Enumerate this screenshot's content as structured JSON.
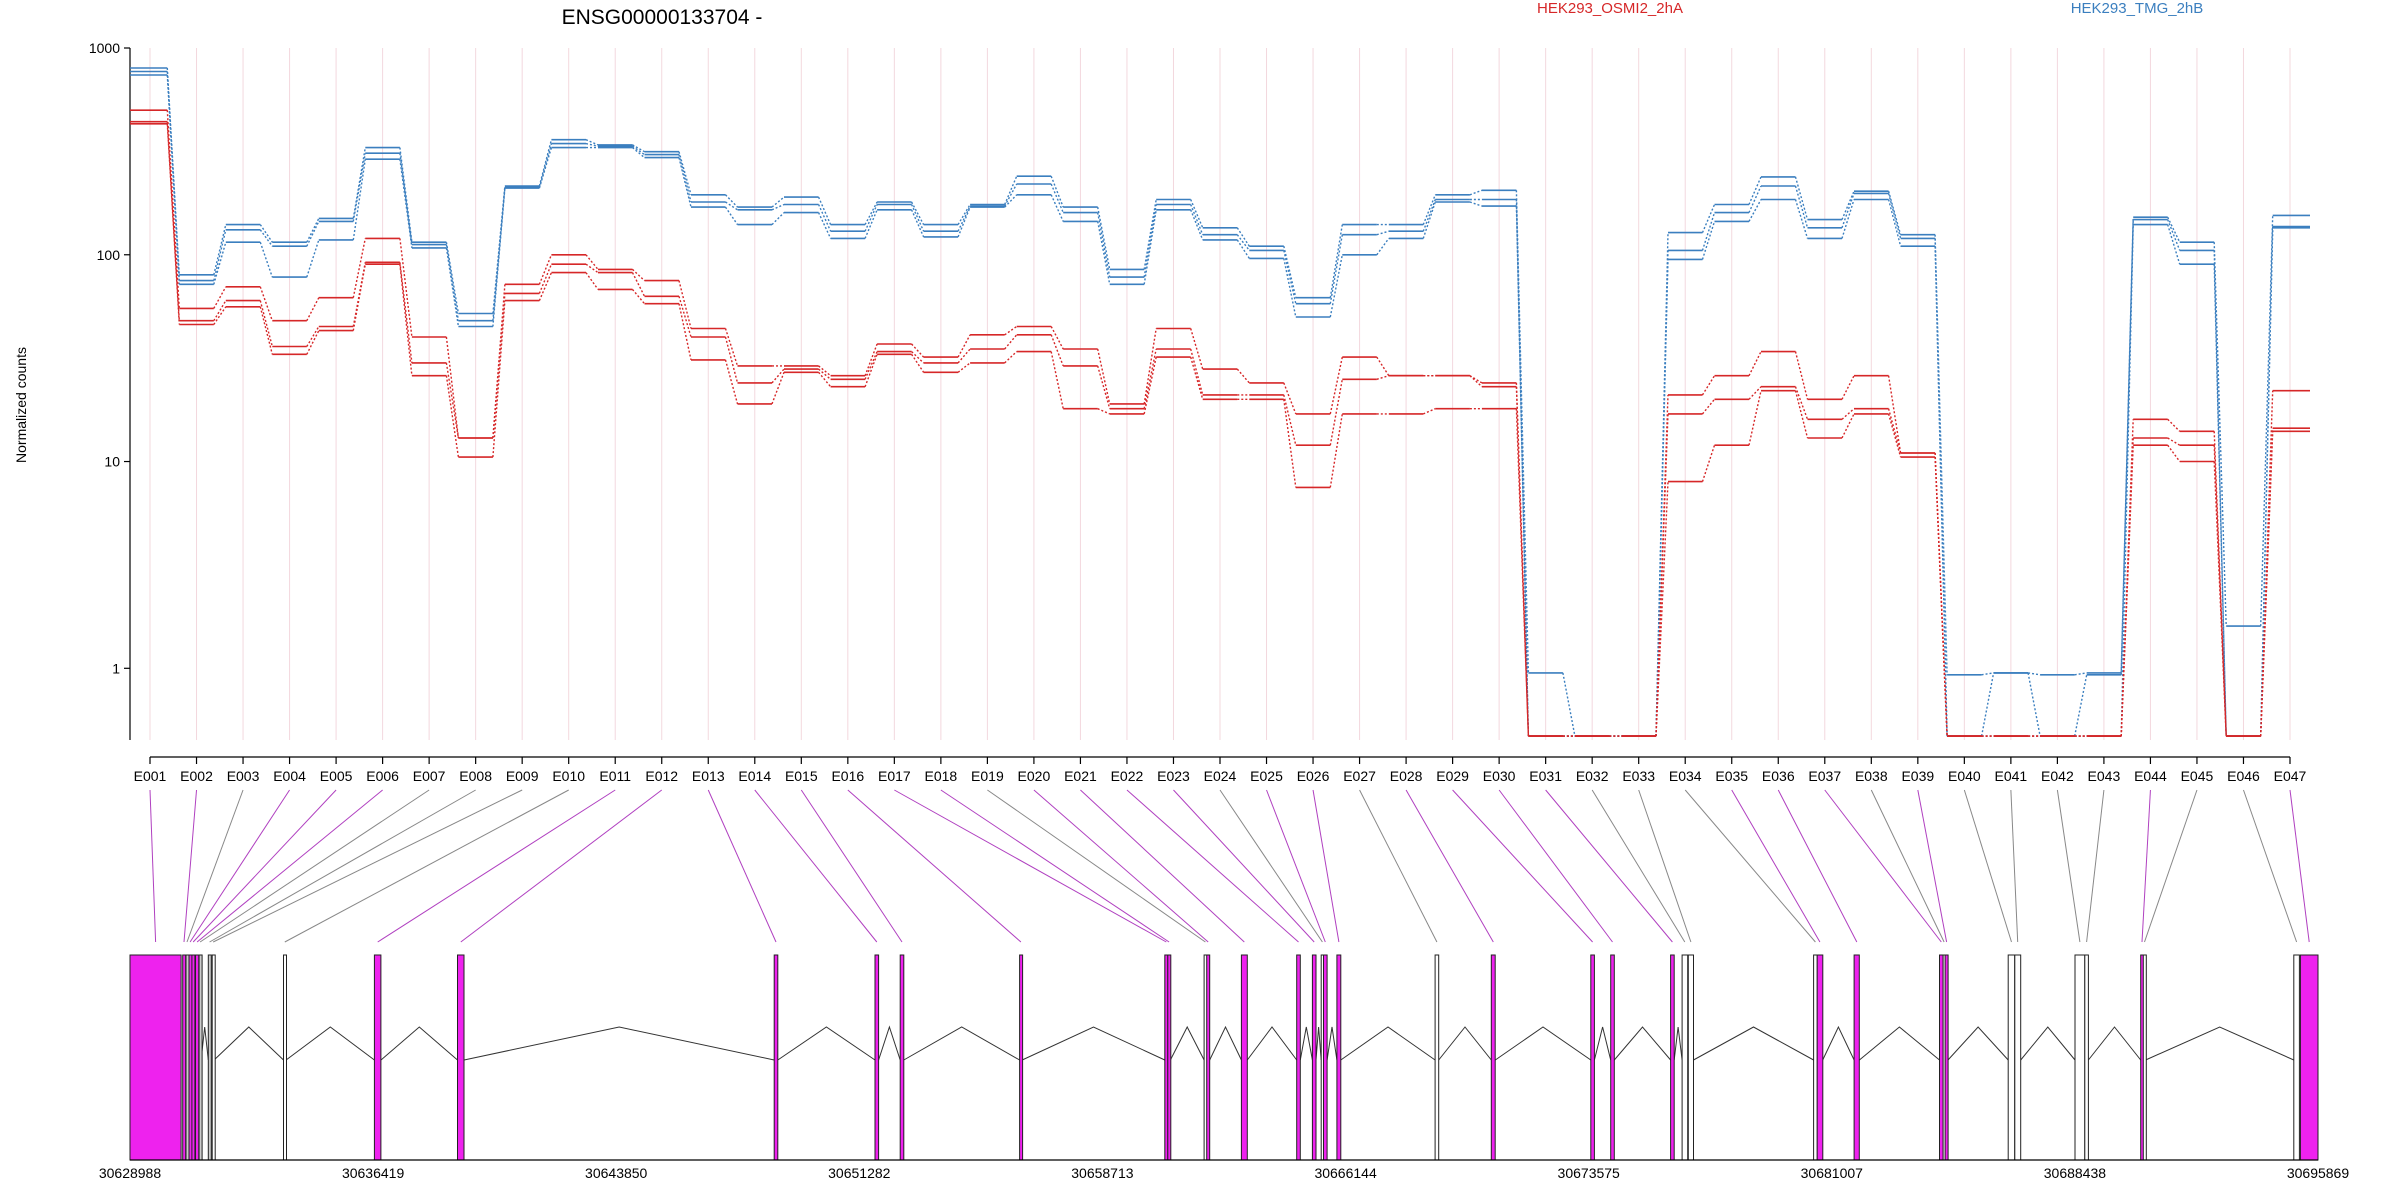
{
  "chart_data": {
    "type": "line",
    "title": "ENSG00000133704 -",
    "ylabel": "Normalized counts",
    "yscale": "log",
    "ylim": [
      0.45,
      1000
    ],
    "yticks": [
      {
        "value": 1,
        "label": "1"
      },
      {
        "value": 10,
        "label": "10"
      },
      {
        "value": 100,
        "label": "100"
      },
      {
        "value": 1000,
        "label": "1000"
      }
    ],
    "legend": [
      {
        "name": "HEK293_OSMI2_2hA",
        "color": "#d62728",
        "position": "top-center"
      },
      {
        "name": "HEK293_TMG_2hB",
        "color": "#3b7fbf",
        "position": "top-right"
      }
    ],
    "categories": [
      "E001",
      "E002",
      "E003",
      "E004",
      "E005",
      "E006",
      "E007",
      "E008",
      "E009",
      "E010",
      "E011",
      "E012",
      "E013",
      "E014",
      "E015",
      "E016",
      "E017",
      "E018",
      "E019",
      "E020",
      "E021",
      "E022",
      "E023",
      "E024",
      "E025",
      "E026",
      "E027",
      "E028",
      "E029",
      "E030",
      "E031",
      "E032",
      "E033",
      "E034",
      "E035",
      "E036",
      "E037",
      "E038",
      "E039",
      "E040",
      "E041",
      "E042",
      "E043",
      "E044",
      "E045",
      "E046",
      "E047"
    ],
    "series": [
      {
        "group": "HEK293_TMG_2hB",
        "color": "#3b7fbf",
        "values": [
          800,
          80,
          140,
          115,
          150,
          330,
          115,
          52,
          215,
          360,
          340,
          315,
          195,
          170,
          190,
          140,
          180,
          140,
          175,
          240,
          170,
          85,
          185,
          135,
          110,
          62,
          140,
          140,
          195,
          205,
          0.95,
          0.47,
          0.47,
          128,
          175,
          238,
          148,
          203,
          125,
          0.93,
          0.95,
          0.93,
          0.95,
          152,
          115,
          1.6,
          155
        ]
      },
      {
        "group": "HEK293_TMG_2hB",
        "color": "#3b7fbf",
        "values": [
          770,
          75,
          132,
          110,
          145,
          310,
          112,
          48,
          212,
          345,
          335,
          305,
          180,
          165,
          175,
          130,
          175,
          130,
          172,
          220,
          160,
          78,
          175,
          125,
          105,
          58,
          125,
          130,
          185,
          185,
          0.47,
          0.47,
          0.47,
          105,
          160,
          215,
          135,
          198,
          120,
          0.47,
          0.95,
          0.47,
          0.93,
          148,
          105,
          0.47,
          137
        ]
      },
      {
        "group": "HEK293_TMG_2hB",
        "color": "#3b7fbf",
        "values": [
          740,
          72,
          115,
          78,
          118,
          290,
          108,
          45,
          210,
          330,
          330,
          295,
          170,
          140,
          160,
          120,
          165,
          122,
          170,
          195,
          145,
          72,
          165,
          118,
          96,
          50,
          100,
          120,
          180,
          172,
          0.47,
          0.47,
          0.47,
          95,
          145,
          185,
          120,
          185,
          110,
          0.47,
          0.47,
          0.47,
          0.47,
          140,
          90,
          0.47,
          135
        ]
      },
      {
        "group": "HEK293_OSMI2_2hA",
        "color": "#d62728",
        "values": [
          500,
          55,
          70,
          48,
          62,
          120,
          40,
          13,
          72,
          100,
          85,
          75,
          44,
          29,
          29,
          26,
          37,
          32,
          41,
          45,
          35,
          19,
          44,
          28,
          24,
          17,
          32,
          26,
          26,
          24,
          0.47,
          0.47,
          0.47,
          21,
          26,
          34,
          20,
          26,
          11,
          0.47,
          0.47,
          0.47,
          0.47,
          16,
          14,
          0.47,
          22
        ]
      },
      {
        "group": "HEK293_OSMI2_2hA",
        "color": "#d62728",
        "values": [
          440,
          48,
          60,
          36,
          45,
          92,
          30,
          13,
          65,
          90,
          82,
          63,
          40,
          24,
          28,
          25,
          34,
          30,
          35,
          41,
          29,
          18,
          35,
          21,
          21,
          12,
          25,
          26,
          26,
          23,
          0.47,
          0.47,
          0.47,
          17,
          20,
          23,
          16,
          18,
          11,
          0.47,
          0.47,
          0.47,
          0.47,
          13,
          12,
          0.47,
          14.5
        ]
      },
      {
        "group": "HEK293_OSMI2_2hA",
        "color": "#d62728",
        "values": [
          430,
          46,
          56,
          33,
          43,
          90,
          26,
          10.5,
          60,
          82,
          68,
          58,
          31,
          19,
          27,
          23,
          33,
          27,
          30,
          34,
          18,
          17,
          32,
          20,
          20,
          7.5,
          17,
          17,
          18,
          18,
          0.47,
          0.47,
          0.47,
          8,
          12,
          22,
          13,
          17,
          10.5,
          0.47,
          0.47,
          0.47,
          0.47,
          12,
          10,
          0.47,
          14
        ]
      }
    ],
    "gene_model": {
      "start": 30628988,
      "end": 30695869,
      "coordinate_labels": [
        "30628988",
        "30636419",
        "30643850",
        "30651282",
        "30658713",
        "30666144",
        "30673575",
        "30681007",
        "30688438",
        "30695869"
      ],
      "coordinate_values": [
        30628988,
        30636419,
        30643850,
        30651282,
        30658713,
        30666144,
        30673575,
        30681007,
        30688438,
        30695869
      ],
      "exons": [
        {
          "id": "E001",
          "start": 30628988,
          "end": 30630550,
          "highlight": true
        },
        {
          "id": "E002",
          "start": 30630600,
          "end": 30630680,
          "highlight": true
        },
        {
          "id": "E003",
          "start": 30630700,
          "end": 30630760,
          "highlight": false
        },
        {
          "id": "E004",
          "start": 30630790,
          "end": 30630860,
          "highlight": true
        },
        {
          "id": "E005",
          "start": 30630880,
          "end": 30630960,
          "highlight": true
        },
        {
          "id": "E006",
          "start": 30630990,
          "end": 30631090,
          "highlight": true
        },
        {
          "id": "E007",
          "start": 30631100,
          "end": 30631160,
          "highlight": false
        },
        {
          "id": "E008",
          "start": 30631380,
          "end": 30631460,
          "highlight": false
        },
        {
          "id": "E009",
          "start": 30631500,
          "end": 30631560,
          "highlight": false
        },
        {
          "id": "E010",
          "start": 30633680,
          "end": 30633760,
          "highlight": false
        },
        {
          "id": "E011",
          "start": 30636460,
          "end": 30636660,
          "highlight": true
        },
        {
          "id": "E012",
          "start": 30639000,
          "end": 30639200,
          "highlight": true
        },
        {
          "id": "E013",
          "start": 30648680,
          "end": 30648790,
          "highlight": true
        },
        {
          "id": "E014",
          "start": 30651760,
          "end": 30651870,
          "highlight": true
        },
        {
          "id": "E015",
          "start": 30652530,
          "end": 30652640,
          "highlight": true
        },
        {
          "id": "E016",
          "start": 30656180,
          "end": 30656260,
          "highlight": true
        },
        {
          "id": "E017",
          "start": 30660620,
          "end": 30660710,
          "highlight": true
        },
        {
          "id": "E018",
          "start": 30660710,
          "end": 30660790,
          "highlight": true
        },
        {
          "id": "E019",
          "start": 30661820,
          "end": 30661900,
          "highlight": false
        },
        {
          "id": "E020",
          "start": 30661900,
          "end": 30661990,
          "highlight": true
        },
        {
          "id": "E021",
          "start": 30662960,
          "end": 30663140,
          "highlight": true
        },
        {
          "id": "E022",
          "start": 30664650,
          "end": 30664760,
          "highlight": true
        },
        {
          "id": "E023",
          "start": 30665130,
          "end": 30665240,
          "highlight": true
        },
        {
          "id": "E024",
          "start": 30665400,
          "end": 30665470,
          "highlight": false
        },
        {
          "id": "E025",
          "start": 30665470,
          "end": 30665580,
          "highlight": true
        },
        {
          "id": "E026",
          "start": 30665880,
          "end": 30666000,
          "highlight": true
        },
        {
          "id": "E027",
          "start": 30668880,
          "end": 30668990,
          "highlight": false
        },
        {
          "id": "E028",
          "start": 30670600,
          "end": 30670720,
          "highlight": true
        },
        {
          "id": "E029",
          "start": 30673640,
          "end": 30673750,
          "highlight": true
        },
        {
          "id": "E030",
          "start": 30674250,
          "end": 30674360,
          "highlight": true
        },
        {
          "id": "E031",
          "start": 30676080,
          "end": 30676190,
          "highlight": true
        },
        {
          "id": "E032",
          "start": 30676430,
          "end": 30676600,
          "highlight": false
        },
        {
          "id": "E033",
          "start": 30676620,
          "end": 30676780,
          "highlight": false
        },
        {
          "id": "E034",
          "start": 30680450,
          "end": 30680560,
          "highlight": false
        },
        {
          "id": "E035",
          "start": 30680560,
          "end": 30680730,
          "highlight": true
        },
        {
          "id": "E036",
          "start": 30681690,
          "end": 30681850,
          "highlight": true
        },
        {
          "id": "E037",
          "start": 30684300,
          "end": 30684410,
          "highlight": true
        },
        {
          "id": "E038",
          "start": 30684410,
          "end": 30684470,
          "highlight": false
        },
        {
          "id": "E039",
          "start": 30684470,
          "end": 30684560,
          "highlight": true
        },
        {
          "id": "E040",
          "start": 30686400,
          "end": 30686600,
          "highlight": false
        },
        {
          "id": "E041",
          "start": 30686600,
          "end": 30686780,
          "highlight": false
        },
        {
          "id": "E042",
          "start": 30688440,
          "end": 30688740,
          "highlight": false
        },
        {
          "id": "E043",
          "start": 30688740,
          "end": 30688850,
          "highlight": false
        },
        {
          "id": "E044",
          "start": 30690450,
          "end": 30690530,
          "highlight": true
        },
        {
          "id": "E045",
          "start": 30690530,
          "end": 30690600,
          "highlight": false
        },
        {
          "id": "E046",
          "start": 30695130,
          "end": 30695300,
          "highlight": false
        },
        {
          "id": "E047",
          "start": 30695330,
          "end": 30695869,
          "highlight": true
        }
      ]
    },
    "colors": {
      "highlight_exon": "#ee22ee",
      "gray_exon": "#cccccc",
      "white_exon": "#ffffff",
      "link_magenta": "#b040c0",
      "link_gray": "#888888",
      "grid": "#f3d8de"
    }
  }
}
